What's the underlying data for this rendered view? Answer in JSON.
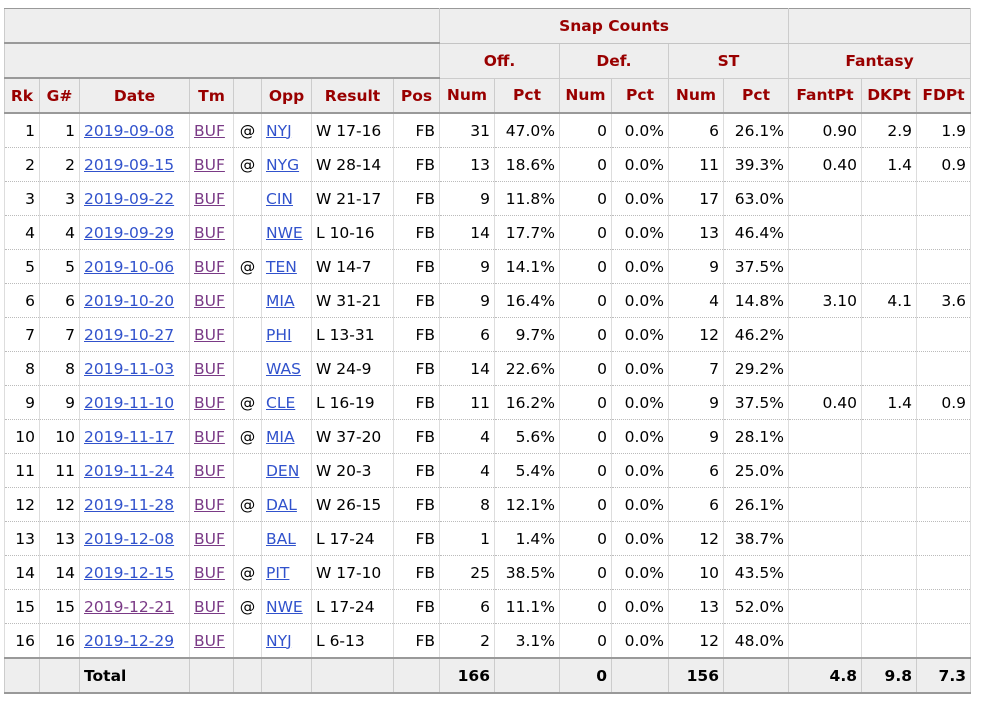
{
  "header": {
    "snap_counts": "Snap Counts",
    "off": "Off.",
    "def": "Def.",
    "st": "ST",
    "fantasy": "Fantasy"
  },
  "columns": [
    "Rk",
    "G#",
    "Date",
    "Tm",
    "",
    "Opp",
    "Result",
    "Pos",
    "Num",
    "Pct",
    "Num",
    "Pct",
    "Num",
    "Pct",
    "FantPt",
    "DKPt",
    "FDPt"
  ],
  "rows": [
    {
      "rk": "1",
      "g": "1",
      "date": "2019-09-08",
      "tm": "BUF",
      "at": "@",
      "opp": "NYJ",
      "result": "W 17-16",
      "pos": "FB",
      "off_num": "31",
      "off_pct": "47.0%",
      "def_num": "0",
      "def_pct": "0.0%",
      "st_num": "6",
      "st_pct": "26.1%",
      "fant": "0.90",
      "dk": "2.9",
      "fd": "1.9"
    },
    {
      "rk": "2",
      "g": "2",
      "date": "2019-09-15",
      "tm": "BUF",
      "at": "@",
      "opp": "NYG",
      "result": "W 28-14",
      "pos": "FB",
      "off_num": "13",
      "off_pct": "18.6%",
      "def_num": "0",
      "def_pct": "0.0%",
      "st_num": "11",
      "st_pct": "39.3%",
      "fant": "0.40",
      "dk": "1.4",
      "fd": "0.9"
    },
    {
      "rk": "3",
      "g": "3",
      "date": "2019-09-22",
      "tm": "BUF",
      "at": "",
      "opp": "CIN",
      "result": "W 21-17",
      "pos": "FB",
      "off_num": "9",
      "off_pct": "11.8%",
      "def_num": "0",
      "def_pct": "0.0%",
      "st_num": "17",
      "st_pct": "63.0%",
      "fant": "",
      "dk": "",
      "fd": ""
    },
    {
      "rk": "4",
      "g": "4",
      "date": "2019-09-29",
      "tm": "BUF",
      "at": "",
      "opp": "NWE",
      "result": "L 10-16",
      "pos": "FB",
      "off_num": "14",
      "off_pct": "17.7%",
      "def_num": "0",
      "def_pct": "0.0%",
      "st_num": "13",
      "st_pct": "46.4%",
      "fant": "",
      "dk": "",
      "fd": ""
    },
    {
      "rk": "5",
      "g": "5",
      "date": "2019-10-06",
      "tm": "BUF",
      "at": "@",
      "opp": "TEN",
      "result": "W 14-7",
      "pos": "FB",
      "off_num": "9",
      "off_pct": "14.1%",
      "def_num": "0",
      "def_pct": "0.0%",
      "st_num": "9",
      "st_pct": "37.5%",
      "fant": "",
      "dk": "",
      "fd": ""
    },
    {
      "rk": "6",
      "g": "6",
      "date": "2019-10-20",
      "tm": "BUF",
      "at": "",
      "opp": "MIA",
      "result": "W 31-21",
      "pos": "FB",
      "off_num": "9",
      "off_pct": "16.4%",
      "def_num": "0",
      "def_pct": "0.0%",
      "st_num": "4",
      "st_pct": "14.8%",
      "fant": "3.10",
      "dk": "4.1",
      "fd": "3.6"
    },
    {
      "rk": "7",
      "g": "7",
      "date": "2019-10-27",
      "tm": "BUF",
      "at": "",
      "opp": "PHI",
      "result": "L 13-31",
      "pos": "FB",
      "off_num": "6",
      "off_pct": "9.7%",
      "def_num": "0",
      "def_pct": "0.0%",
      "st_num": "12",
      "st_pct": "46.2%",
      "fant": "",
      "dk": "",
      "fd": ""
    },
    {
      "rk": "8",
      "g": "8",
      "date": "2019-11-03",
      "tm": "BUF",
      "at": "",
      "opp": "WAS",
      "result": "W 24-9",
      "pos": "FB",
      "off_num": "14",
      "off_pct": "22.6%",
      "def_num": "0",
      "def_pct": "0.0%",
      "st_num": "7",
      "st_pct": "29.2%",
      "fant": "",
      "dk": "",
      "fd": ""
    },
    {
      "rk": "9",
      "g": "9",
      "date": "2019-11-10",
      "tm": "BUF",
      "at": "@",
      "opp": "CLE",
      "result": "L 16-19",
      "pos": "FB",
      "off_num": "11",
      "off_pct": "16.2%",
      "def_num": "0",
      "def_pct": "0.0%",
      "st_num": "9",
      "st_pct": "37.5%",
      "fant": "0.40",
      "dk": "1.4",
      "fd": "0.9"
    },
    {
      "rk": "10",
      "g": "10",
      "date": "2019-11-17",
      "tm": "BUF",
      "at": "@",
      "opp": "MIA",
      "result": "W 37-20",
      "pos": "FB",
      "off_num": "4",
      "off_pct": "5.6%",
      "def_num": "0",
      "def_pct": "0.0%",
      "st_num": "9",
      "st_pct": "28.1%",
      "fant": "",
      "dk": "",
      "fd": ""
    },
    {
      "rk": "11",
      "g": "11",
      "date": "2019-11-24",
      "tm": "BUF",
      "at": "",
      "opp": "DEN",
      "result": "W 20-3",
      "pos": "FB",
      "off_num": "4",
      "off_pct": "5.4%",
      "def_num": "0",
      "def_pct": "0.0%",
      "st_num": "6",
      "st_pct": "25.0%",
      "fant": "",
      "dk": "",
      "fd": ""
    },
    {
      "rk": "12",
      "g": "12",
      "date": "2019-11-28",
      "tm": "BUF",
      "at": "@",
      "opp": "DAL",
      "result": "W 26-15",
      "pos": "FB",
      "off_num": "8",
      "off_pct": "12.1%",
      "def_num": "0",
      "def_pct": "0.0%",
      "st_num": "6",
      "st_pct": "26.1%",
      "fant": "",
      "dk": "",
      "fd": ""
    },
    {
      "rk": "13",
      "g": "13",
      "date": "2019-12-08",
      "tm": "BUF",
      "at": "",
      "opp": "BAL",
      "result": "L 17-24",
      "pos": "FB",
      "off_num": "1",
      "off_pct": "1.4%",
      "def_num": "0",
      "def_pct": "0.0%",
      "st_num": "12",
      "st_pct": "38.7%",
      "fant": "",
      "dk": "",
      "fd": ""
    },
    {
      "rk": "14",
      "g": "14",
      "date": "2019-12-15",
      "tm": "BUF",
      "at": "@",
      "opp": "PIT",
      "result": "W 17-10",
      "pos": "FB",
      "off_num": "25",
      "off_pct": "38.5%",
      "def_num": "0",
      "def_pct": "0.0%",
      "st_num": "10",
      "st_pct": "43.5%",
      "fant": "",
      "dk": "",
      "fd": ""
    },
    {
      "rk": "15",
      "g": "15",
      "date": "2019-12-21",
      "tm": "BUF",
      "at": "@",
      "opp": "NWE",
      "result": "L 17-24",
      "pos": "FB",
      "off_num": "6",
      "off_pct": "11.1%",
      "def_num": "0",
      "def_pct": "0.0%",
      "st_num": "13",
      "st_pct": "52.0%",
      "fant": "",
      "dk": "",
      "fd": ""
    },
    {
      "rk": "16",
      "g": "16",
      "date": "2019-12-29",
      "tm": "BUF",
      "at": "",
      "opp": "NYJ",
      "result": "L 6-13",
      "pos": "FB",
      "off_num": "2",
      "off_pct": "3.1%",
      "def_num": "0",
      "def_pct": "0.0%",
      "st_num": "12",
      "st_pct": "48.0%",
      "fant": "",
      "dk": "",
      "fd": ""
    }
  ],
  "total": {
    "label": "Total",
    "off_num": "166",
    "def_num": "0",
    "st_num": "156",
    "fant": "4.8",
    "dk": "9.8",
    "fd": "7.3"
  },
  "colors": {
    "header_text": "#990000",
    "header_bg": "#eeeeee",
    "link": "#3152cc",
    "visited_link": "#7a3a86"
  }
}
